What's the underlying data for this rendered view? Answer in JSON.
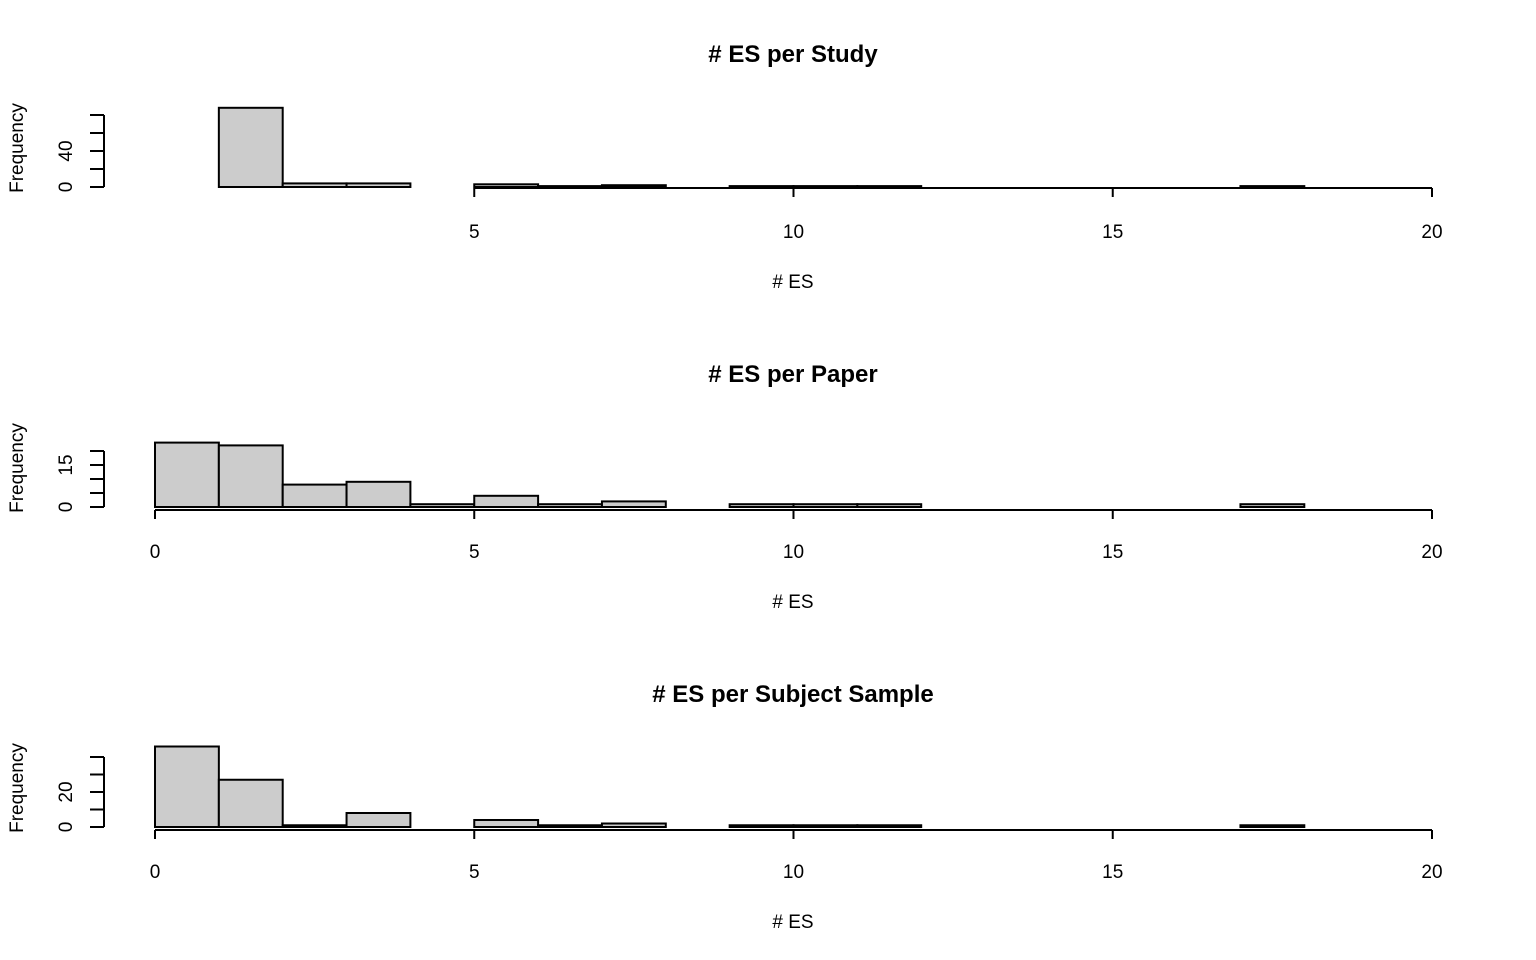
{
  "chart_data": [
    {
      "type": "bar",
      "title": "# ES per Study",
      "xlabel": "# ES",
      "ylabel": "Frequency",
      "xlim": [
        0,
        20
      ],
      "ylim": [
        0,
        80
      ],
      "bin_width": 1,
      "bins_start": [
        1,
        2,
        3,
        4,
        5,
        6,
        7,
        8,
        9,
        10,
        11,
        12,
        13,
        14,
        15,
        16,
        17,
        18,
        19
      ],
      "values": [
        88,
        4,
        4,
        0,
        3,
        1,
        2,
        0,
        1,
        1,
        1,
        0,
        0,
        0,
        0,
        0,
        1,
        0,
        0
      ],
      "x_ticks": [
        5,
        10,
        15,
        20
      ],
      "y_ticks": [
        0,
        40
      ],
      "y_minor_ticks": [
        20,
        60,
        80
      ],
      "grid": false,
      "legend": "none"
    },
    {
      "type": "bar",
      "title": "# ES per Paper",
      "xlabel": "# ES",
      "ylabel": "Frequency",
      "xlim": [
        0,
        20
      ],
      "ylim": [
        0,
        25
      ],
      "bin_width": 1,
      "bins_start": [
        0,
        1,
        2,
        3,
        4,
        5,
        6,
        7,
        8,
        9,
        10,
        11,
        12,
        13,
        14,
        15,
        16,
        17,
        18,
        19
      ],
      "values": [
        23,
        22,
        8,
        9,
        1,
        4,
        1,
        2,
        0,
        1,
        1,
        1,
        0,
        0,
        0,
        0,
        0,
        1,
        0,
        0
      ],
      "x_ticks": [
        0,
        5,
        10,
        15,
        20
      ],
      "y_ticks": [
        0,
        15
      ],
      "y_minor_ticks": [
        5,
        10,
        20
      ],
      "grid": false,
      "legend": "none"
    },
    {
      "type": "bar",
      "title": "# ES per Subject Sample",
      "xlabel": "# ES",
      "ylabel": "Frequency",
      "xlim": [
        0,
        20
      ],
      "ylim": [
        0,
        40
      ],
      "bin_width": 1,
      "bins_start": [
        0,
        1,
        2,
        3,
        4,
        5,
        6,
        7,
        8,
        9,
        10,
        11,
        12,
        13,
        14,
        15,
        16,
        17,
        18,
        19
      ],
      "values": [
        46,
        27,
        1,
        8,
        0,
        4,
        1,
        2,
        0,
        1,
        1,
        1,
        0,
        0,
        0,
        0,
        0,
        1,
        0,
        0
      ],
      "x_ticks": [
        0,
        5,
        10,
        15,
        20
      ],
      "y_ticks": [
        0,
        20
      ],
      "y_minor_ticks": [
        10,
        30,
        40
      ],
      "grid": false,
      "legend": "none"
    }
  ]
}
